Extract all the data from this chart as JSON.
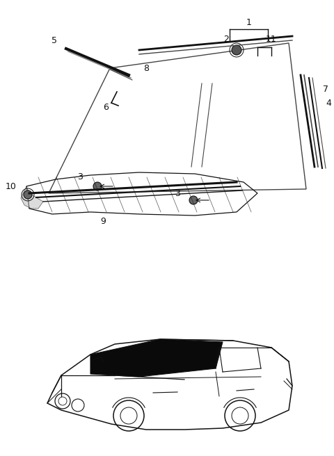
{
  "bg_color": "#ffffff",
  "lc": "#444444",
  "dc": "#111111",
  "gray": "#888888",
  "fig_width": 4.8,
  "fig_height": 6.56,
  "dpi": 100
}
